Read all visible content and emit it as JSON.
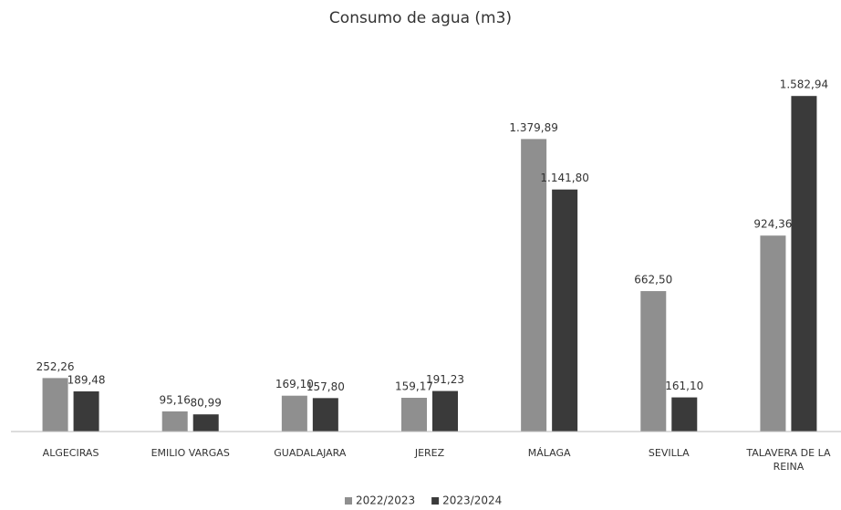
{
  "chart_data": {
    "type": "bar",
    "title": "Consumo de agua (m3)",
    "categories": [
      "ALGECIRAS",
      "EMILIO VARGAS",
      "GUADALAJARA",
      "JEREZ",
      "MÁLAGA",
      "SEVILLA",
      "TALAVERA DE LA REINA"
    ],
    "series": [
      {
        "name": "2022/2023",
        "color": "#8f8f8f",
        "values": [
          252.26,
          95.16,
          169.1,
          159.17,
          1379.89,
          662.5,
          924.36
        ],
        "value_labels": [
          "252,26",
          "95,16",
          "169,10",
          "159,17",
          "1.379,89",
          "662,50",
          "924,36"
        ]
      },
      {
        "name": "2023/2024",
        "color": "#3a3a3a",
        "values": [
          189.48,
          80.99,
          157.8,
          191.23,
          1141.8,
          161.1,
          1582.94
        ],
        "value_labels": [
          "189,48",
          "80,99",
          "157,80",
          "191,23",
          "1.141,80",
          "161,10",
          "1.582,94"
        ]
      }
    ],
    "ylim": [
      0,
      1700
    ],
    "legend": "bottom"
  }
}
